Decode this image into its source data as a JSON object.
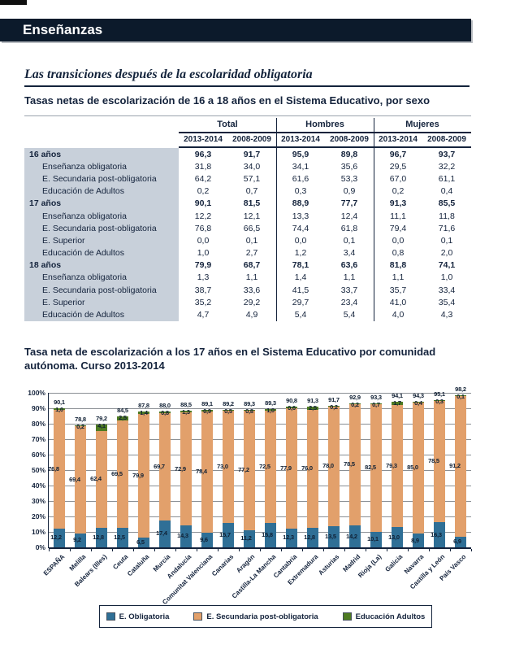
{
  "page": {
    "header": "Enseñanzas",
    "subtitle": "Las transiciones después de la escolaridad obligatoria",
    "table_title": "Tasas netas de escolarización de 16 a 18 años en el Sistema Educativo, por sexo"
  },
  "colors": {
    "band_bg": "#0C1A2B",
    "ink": "#14233C",
    "table_label_bg": "#C8D0DA",
    "bar_blue": "#2F6F96",
    "bar_orange": "#E2A06B",
    "bar_green": "#4E7B22",
    "gridline": "#8a8f94"
  },
  "table": {
    "col_groups": [
      "Total",
      "Hombres",
      "Mujeres"
    ],
    "year_cols": [
      "2013-2014",
      "2008-2009"
    ],
    "rows": [
      {
        "label": "16 años",
        "bold": true,
        "values": [
          "96,3",
          "91,7",
          "95,9",
          "89,8",
          "96,7",
          "93,7"
        ]
      },
      {
        "label": "Enseñanza obligatoria",
        "bold": false,
        "values": [
          "31,8",
          "34,0",
          "34,1",
          "35,6",
          "29,5",
          "32,2"
        ]
      },
      {
        "label": "E. Secundaria post-obligatoria",
        "bold": false,
        "values": [
          "64,2",
          "57,1",
          "61,6",
          "53,3",
          "67,0",
          "61,1"
        ]
      },
      {
        "label": "Educación de Adultos",
        "bold": false,
        "values": [
          "0,2",
          "0,7",
          "0,3",
          "0,9",
          "0,2",
          "0,4"
        ]
      },
      {
        "label": "17 años",
        "bold": true,
        "values": [
          "90,1",
          "81,5",
          "88,9",
          "77,7",
          "91,3",
          "85,5"
        ]
      },
      {
        "label": "Enseñanza obligatoria",
        "bold": false,
        "values": [
          "12,2",
          "12,1",
          "13,3",
          "12,4",
          "11,1",
          "11,8"
        ]
      },
      {
        "label": "E. Secundaria post-obligatoria",
        "bold": false,
        "values": [
          "76,8",
          "66,5",
          "74,4",
          "61,8",
          "79,4",
          "71,6"
        ]
      },
      {
        "label": "E. Superior",
        "bold": false,
        "values": [
          "0,0",
          "0,1",
          "0,0",
          "0,1",
          "0,0",
          "0,1"
        ]
      },
      {
        "label": "Educación de Adultos",
        "bold": false,
        "values": [
          "1,0",
          "2,7",
          "1,2",
          "3,4",
          "0,8",
          "2,0"
        ]
      },
      {
        "label": "18 años",
        "bold": true,
        "values": [
          "79,9",
          "68,7",
          "78,1",
          "63,6",
          "81,8",
          "74,1"
        ]
      },
      {
        "label": "Enseñanza obligatoria",
        "bold": false,
        "values": [
          "1,3",
          "1,1",
          "1,4",
          "1,1",
          "1,1",
          "1,0"
        ]
      },
      {
        "label": "E. Secundaria post-obligatoria",
        "bold": false,
        "values": [
          "38,7",
          "33,6",
          "41,5",
          "33,7",
          "35,7",
          "33,4"
        ]
      },
      {
        "label": "E. Superior",
        "bold": false,
        "values": [
          "35,2",
          "29,2",
          "29,7",
          "23,4",
          "41,0",
          "35,4"
        ]
      },
      {
        "label": "Educación de Adultos",
        "bold": false,
        "values": [
          "4,7",
          "4,9",
          "5,4",
          "5,4",
          "4,0",
          "4,3"
        ]
      }
    ]
  },
  "chart_data": {
    "type": "bar",
    "stacked": true,
    "title": "Tasa neta de escolarización a los 17 años en el Sistema Educativo por comunidad autónoma. Curso 2013-2014",
    "xlabel": "",
    "ylabel": "",
    "ylim": [
      0,
      100
    ],
    "y_tick_step": 10,
    "y_tick_suffix": "%",
    "grid": true,
    "legend_position": "bottom",
    "categories": [
      "ESPAÑA",
      "Melilla",
      "Balears (Illes)",
      "Ceuta",
      "Cataluña",
      "Murcia",
      "Andalucía",
      "Comunitat Valenciana",
      "Canarias",
      "Aragón",
      "Castilla-La Mancha",
      "Cantabria",
      "Extremadura",
      "Asturias",
      "Madrid",
      "Rioja (La)",
      "Galicia",
      "Navarra",
      "Castilla y León",
      "País Vasco"
    ],
    "series": [
      {
        "name": "E. Obligatoria",
        "color": "#2F6F96",
        "values": [
          12.2,
          9.2,
          12.8,
          12.5,
          6.5,
          17.4,
          14.3,
          9.6,
          15.7,
          11.2,
          15.8,
          12.3,
          12.8,
          13.5,
          14.2,
          10.1,
          13.0,
          8.9,
          16.3,
          6.9
        ]
      },
      {
        "name": "E. Secundaria post-obligatoria",
        "color": "#E2A06B",
        "values": [
          76.8,
          69.4,
          62.4,
          69.5,
          79.9,
          69.7,
          72.9,
          78.4,
          73.0,
          77.2,
          72.5,
          77.9,
          76.0,
          78.0,
          78.5,
          82.5,
          79.3,
          85.0,
          78.5,
          91.2
        ]
      },
      {
        "name": "Educación Adultos",
        "color": "#4E7B22",
        "values": [
          1.0,
          0.2,
          4.1,
          2.5,
          1.4,
          0.8,
          1.3,
          0.9,
          0.5,
          0.8,
          1.0,
          0.6,
          2.5,
          0.2,
          0.2,
          0.7,
          1.7,
          0.4,
          0.3,
          0.1
        ]
      }
    ],
    "totals": [
      90.1,
      78.8,
      79.2,
      84.5,
      87.8,
      88.0,
      88.5,
      89.1,
      89.2,
      89.3,
      89.3,
      90.8,
      91.3,
      91.7,
      92.9,
      93.3,
      94.1,
      94.3,
      95.1,
      98.2
    ]
  }
}
